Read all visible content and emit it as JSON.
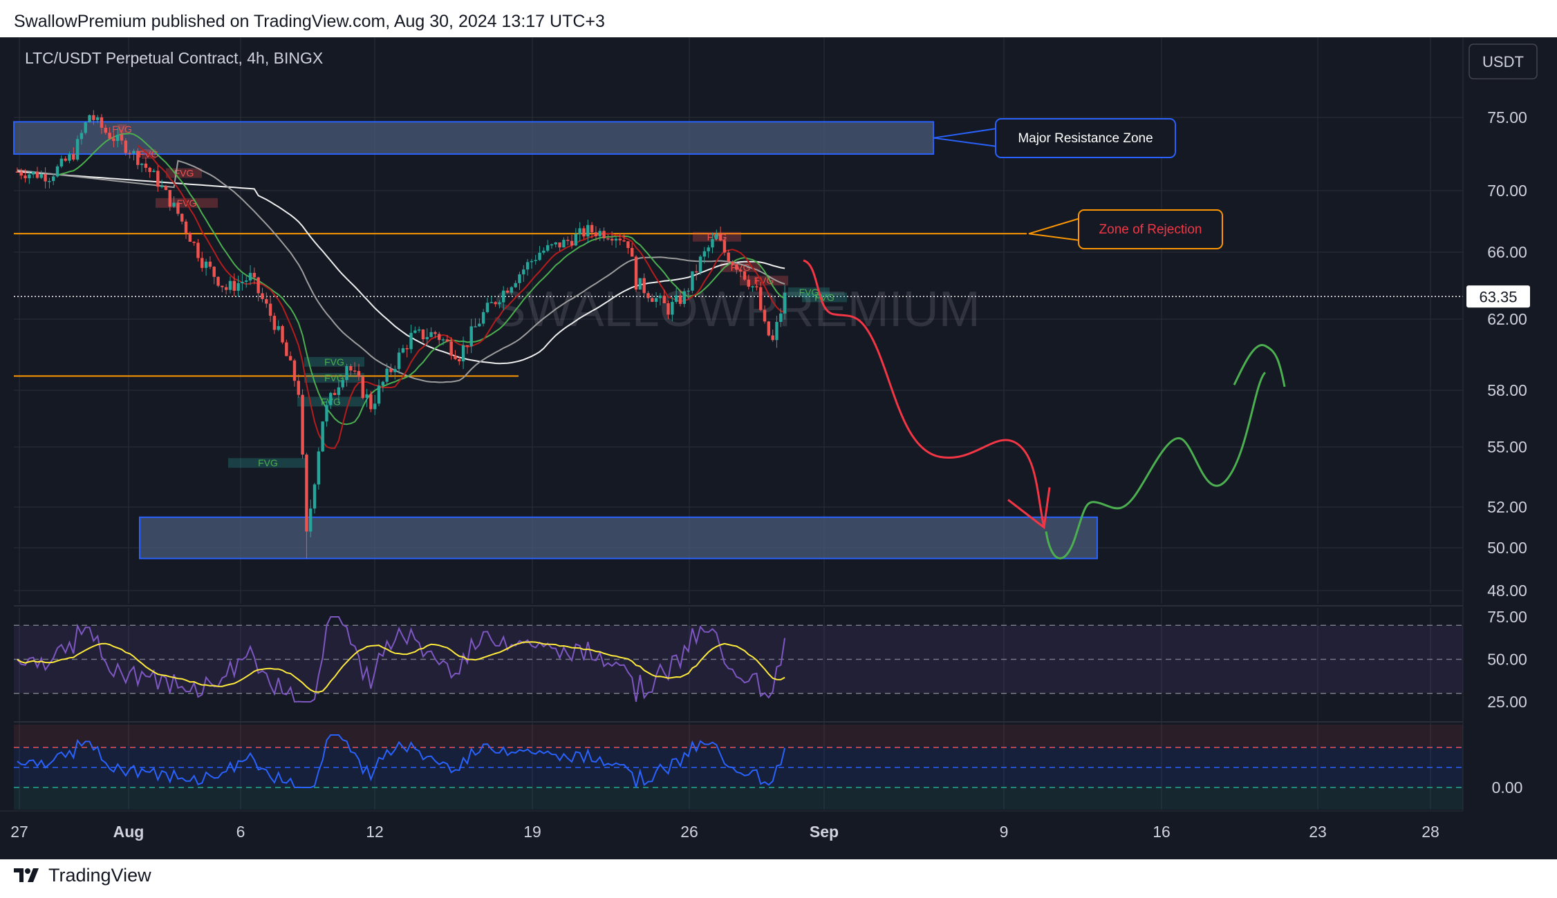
{
  "header": {
    "published_text": "SwallowPremium published on TradingView.com, Aug 30, 2024 13:17 UTC+3"
  },
  "footer": {
    "brand": "TradingView"
  },
  "chart_data": {
    "type": "candlestick",
    "symbol_line": "LTC/USDT Perpetual Contract, 4h, BINGX",
    "currency_button": "USDT",
    "watermark": "SWALLOWPREMIUM",
    "price_axis": {
      "ticks": [
        75.0,
        70.0,
        66.0,
        62.0,
        58.0,
        55.0,
        52.0,
        50.0,
        48.0
      ],
      "tick_labels": [
        "75.00",
        "70.00",
        "66.00",
        "62.00",
        "58.00",
        "55.00",
        "52.00",
        "50.00",
        "48.00"
      ]
    },
    "current_price": {
      "value": 63.35,
      "label": "63.35"
    },
    "time_axis": {
      "labels": [
        "27",
        "Aug",
        "6",
        "12",
        "19",
        "26",
        "Sep",
        "9",
        "16",
        "23",
        "28"
      ],
      "bold": [
        false,
        true,
        false,
        false,
        false,
        false,
        true,
        false,
        false,
        false,
        false
      ]
    },
    "annotations": [
      {
        "type": "zone",
        "label": "Major Resistance Zone",
        "price_low": 72.5,
        "price_high": 74.7
      },
      {
        "type": "hline",
        "label": "Zone of Rejection",
        "price": 67.2
      },
      {
        "type": "hline",
        "label": "",
        "price": 58.8
      },
      {
        "type": "zone",
        "label": "",
        "price_low": 49.5,
        "price_high": 51.5
      }
    ],
    "fvg_labels": [
      "FVG",
      "FVG",
      "FVG",
      "FVG",
      "FVG",
      "FVG",
      "FVG",
      "FVG",
      "FVG",
      "FVG",
      "FVG",
      "FVG",
      "FVG"
    ],
    "projection": {
      "bearish_path_prices": [
        65.5,
        62.0,
        55.8,
        54.5,
        55.2,
        51.0
      ],
      "bullish_path_prices": [
        50.8,
        49.6,
        52.2,
        51.6,
        55.8,
        52.5,
        59.0,
        60.5,
        58.2
      ]
    },
    "rsi_panel": {
      "ticks": [
        75.0,
        50.0,
        25.0
      ],
      "tick_labels": [
        "75.00",
        "50.00",
        "25.00"
      ]
    },
    "oscillator_panel": {
      "ticks": [
        0.0
      ],
      "tick_labels": [
        "0.00"
      ]
    },
    "colors": {
      "background": "#151924",
      "bull_candle": "#26a69a",
      "bear_candle": "#ef5350",
      "zone_fill": "#4a5a78",
      "zone_border": "#2962ff",
      "rejection_line": "#ff9800",
      "projection_bear": "#f23645",
      "projection_bull": "#4caf50",
      "rsi_line": "#7e57c2",
      "rsi_ma": "#ffeb3b",
      "osc_line": "#2962ff"
    }
  }
}
